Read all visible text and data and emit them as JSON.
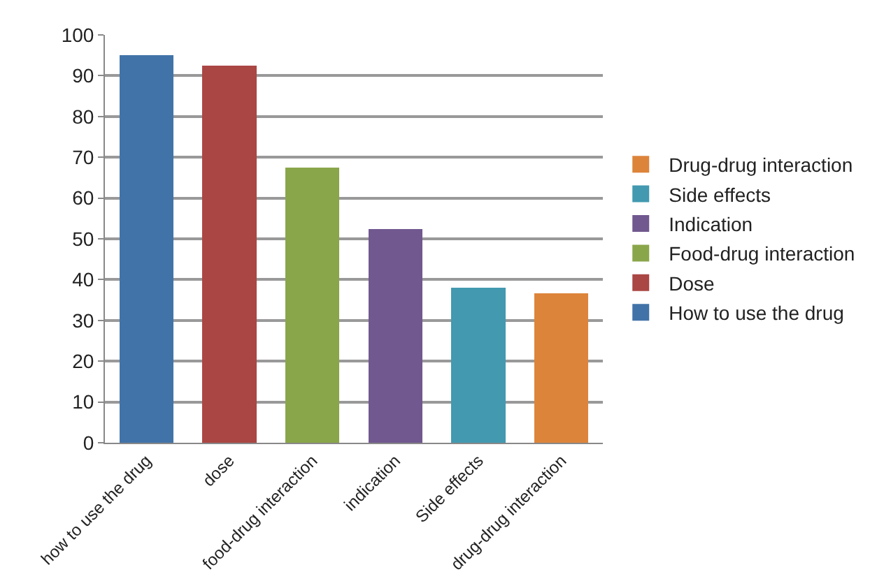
{
  "chart_data": {
    "type": "bar",
    "stacked": true,
    "categories": [
      "how to use the drug",
      "dose",
      "food-drug interaction",
      "indication",
      "Side effects",
      "drug-drug interaction"
    ],
    "series": [
      {
        "name": "Drug-drug interaction",
        "color": "#dd843b",
        "values": [
          null,
          null,
          null,
          null,
          null,
          36.7
        ]
      },
      {
        "name": "Side effects",
        "color": "#4299b0",
        "values": [
          null,
          null,
          null,
          null,
          38.1,
          null
        ]
      },
      {
        "name": "Indication",
        "color": "#71588f",
        "values": [
          null,
          null,
          null,
          52.4,
          null,
          null
        ]
      },
      {
        "name": "Food-drug interaction",
        "color": "#8aa64a",
        "values": [
          null,
          null,
          67.5,
          null,
          null,
          null
        ]
      },
      {
        "name": "Dose",
        "color": "#aa4643",
        "values": [
          null,
          92.4,
          null,
          null,
          null,
          null
        ]
      },
      {
        "name": "How to use the drug",
        "color": "#4173a8",
        "values": [
          95,
          null,
          null,
          null,
          null,
          null
        ]
      }
    ],
    "ylim": [
      0,
      100
    ],
    "yticks": [
      0,
      10,
      20,
      30,
      40,
      50,
      60,
      70,
      80,
      90,
      100
    ],
    "grid": "y",
    "legend": "right"
  }
}
